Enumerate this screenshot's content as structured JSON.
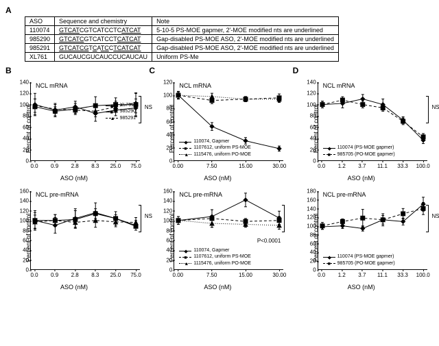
{
  "panelA": {
    "label": "A",
    "columns": [
      "ASO",
      "Sequence and chemistry",
      "Note"
    ],
    "rows": [
      [
        "110074",
        "GTCATCGTCATCCTCATCAT",
        "5-10-5 PS-MOE gapmer, 2'-MOE modified nts are underlined"
      ],
      [
        "985290",
        "GTCATCGTCATCCTCATCAT",
        "Gap-disabled PS-MOE ASO, 2'-MOE modified nts are underlined"
      ],
      [
        "985291",
        "GTCATCGTCATCCTCATCAT",
        "Gap-disabled PS-MOE ASO, 2'-MOE modified nts are underlined"
      ],
      [
        "XL761",
        "GUCAUCGUCAUCCUCAUCAU",
        "Uniform PS-Me"
      ]
    ],
    "underlineRanges": {
      "0": [
        [
          0,
          5
        ],
        [
          15,
          20
        ]
      ],
      "1": [
        [
          0,
          6
        ],
        [
          14,
          20
        ]
      ],
      "2": [
        [
          0,
          7
        ],
        [
          8,
          9
        ],
        [
          10,
          12
        ],
        [
          13,
          20
        ]
      ],
      "3": []
    },
    "font_size_pt": 9,
    "border_color": "#000000"
  },
  "panelB": {
    "label": "B",
    "xlabel": "ASO (nM)",
    "ylabel": "Percent of control",
    "xticks": [
      "0.0",
      "0.9",
      "2.8",
      "8.3",
      "25.0",
      "75.0"
    ],
    "top": {
      "title": "NCL mRNA",
      "ylim": [
        0,
        140
      ],
      "ytick_step": 20,
      "legend": [
        {
          "label": "XL761",
          "style": "solid",
          "marker": "diamond"
        },
        {
          "label": "985290",
          "style": "solid",
          "marker": "square"
        },
        {
          "label": "985291",
          "style": "dash",
          "marker": "triangle"
        }
      ],
      "series": {
        "XL761": {
          "y": [
            98,
            92,
            90,
            88,
            96,
            103
          ],
          "err": [
            12,
            8,
            6,
            10,
            10,
            18
          ]
        },
        "985290": {
          "y": [
            100,
            90,
            96,
            84,
            90,
            94
          ],
          "err": [
            20,
            12,
            10,
            14,
            10,
            16
          ]
        },
        "985291": {
          "y": [
            96,
            88,
            92,
            98,
            100,
            100
          ],
          "err": [
            14,
            8,
            10,
            16,
            12,
            20
          ]
        }
      },
      "annotation": "NS"
    },
    "bottom": {
      "title": "NCL pre-mRNA",
      "ylim": [
        0,
        160
      ],
      "ytick_step": 20,
      "series": {
        "XL761": {
          "y": [
            97,
            100,
            96,
            100,
            97,
            96
          ],
          "err": [
            14,
            12,
            10,
            14,
            10,
            10
          ]
        },
        "985290": {
          "y": [
            100,
            90,
            104,
            116,
            104,
            90
          ],
          "err": [
            20,
            16,
            20,
            20,
            14,
            10
          ]
        },
        "985291": {
          "y": [
            100,
            100,
            102,
            114,
            104,
            88
          ],
          "err": [
            16,
            12,
            18,
            10,
            8,
            8
          ]
        }
      },
      "annotation": "NS"
    }
  },
  "panelC": {
    "label": "C",
    "xlabel": "ASO (nM)",
    "ylabel": "Percent of control",
    "xticks": [
      "0.00",
      "7.50",
      "15.00",
      "30.00"
    ],
    "top": {
      "title": "NCL mRNA",
      "ylim": [
        0,
        120
      ],
      "ytick_step": 20,
      "legend": [
        {
          "label": "110074, Gapmer",
          "style": "solid",
          "marker": "diamond"
        },
        {
          "label": "1107612, uniform PS-MOE",
          "style": "dash",
          "marker": "square"
        },
        {
          "label": "1115476, uniform PO-MOE",
          "style": "dot",
          "marker": "triangle"
        }
      ],
      "series": {
        "110074": {
          "y": [
            100,
            52,
            30,
            18
          ],
          "err": [
            6,
            6,
            5,
            4
          ]
        },
        "1107612": {
          "y": [
            100,
            92,
            94,
            96
          ],
          "err": [
            5,
            5,
            4,
            6
          ]
        },
        "1115476": {
          "y": [
            100,
            98,
            94,
            94
          ],
          "err": [
            5,
            5,
            4,
            5
          ]
        }
      }
    },
    "bottom": {
      "title": "NCL pre-mRNA",
      "ylim": [
        0,
        160
      ],
      "ytick_step": 20,
      "series": {
        "110074": {
          "y": [
            100,
            108,
            142,
            105
          ],
          "err": [
            8,
            14,
            14,
            14
          ]
        },
        "1107612": {
          "y": [
            100,
            104,
            98,
            100
          ],
          "err": [
            8,
            18,
            6,
            8
          ]
        },
        "1115476": {
          "y": [
            100,
            94,
            92,
            90
          ],
          "err": [
            8,
            8,
            6,
            8
          ]
        }
      },
      "annotation": "P<0.0001"
    }
  },
  "panelD": {
    "label": "D",
    "xlabel": "ASO (nM)",
    "ylabel": "Percent of control",
    "xticks": [
      "0.0",
      "1.2",
      "3.7",
      "11.1",
      "33.3",
      "100.0"
    ],
    "top": {
      "title": "NCL mRNA",
      "ylim": [
        0,
        140
      ],
      "ytick_step": 20,
      "legend": [
        {
          "label": "110074 (PS-MOE gapmer)",
          "style": "solid",
          "marker": "diamond"
        },
        {
          "label": "985705 (PO-MOE gapmer)",
          "style": "dash",
          "marker": "square"
        }
      ],
      "series": {
        "110074": {
          "y": [
            100,
            102,
            110,
            100,
            72,
            36
          ],
          "err": [
            6,
            8,
            8,
            10,
            6,
            6
          ]
        },
        "985705": {
          "y": [
            100,
            108,
            100,
            94,
            70,
            42
          ],
          "err": [
            6,
            6,
            6,
            6,
            6,
            6
          ]
        }
      },
      "annotation": "NS"
    },
    "bottom": {
      "title": "NCL pre-mRNA",
      "ylim": [
        0,
        180
      ],
      "ytick_step": 20,
      "series": {
        "110074": {
          "y": [
            98,
            100,
            94,
            114,
            110,
            150
          ],
          "err": [
            6,
            6,
            6,
            10,
            8,
            16
          ]
        },
        "985705": {
          "y": [
            100,
            110,
            118,
            114,
            128,
            140
          ],
          "err": [
            8,
            6,
            20,
            14,
            12,
            14
          ]
        }
      },
      "annotation": "NS"
    }
  },
  "style": {
    "colors": {
      "line": "#000000",
      "bg": "#ffffff"
    },
    "font_family": "Arial",
    "axis_font_pt": 8,
    "title_font_pt": 9,
    "legend_font_pt": 7
  }
}
